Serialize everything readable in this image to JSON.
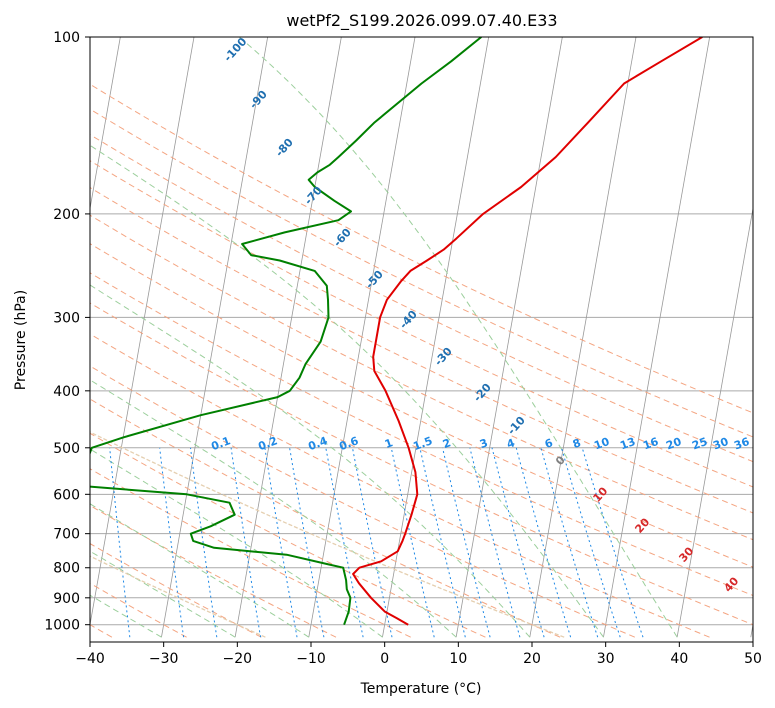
{
  "chart_data": {
    "type": "line",
    "subtype": "skew-T log-P diagram",
    "title": "wetPf2_S199.2026.099.07.40.E33",
    "xlabel": "Temperature (°C)",
    "ylabel": "Pressure (hPa)",
    "xlim": [
      -40,
      50
    ],
    "ylim": [
      1050,
      100
    ],
    "y_scale": "log",
    "grid": true,
    "x_ticks": [
      -40,
      -30,
      -20,
      -10,
      0,
      10,
      20,
      30,
      40,
      50
    ],
    "y_ticks": [
      100,
      200,
      300,
      400,
      500,
      600,
      700,
      800,
      900,
      1000
    ],
    "series": [
      {
        "color": "#e00000",
        "role": "temperature",
        "points": [
          [
            1000,
            3.2
          ],
          [
            975,
            1.5
          ],
          [
            950,
            -0.3
          ],
          [
            900,
            -2.5
          ],
          [
            850,
            -4.5
          ],
          [
            820,
            -5.5
          ],
          [
            800,
            -4.8
          ],
          [
            780,
            -2.0
          ],
          [
            750,
            0.0
          ],
          [
            720,
            0.4
          ],
          [
            700,
            0.6
          ],
          [
            650,
            1.0
          ],
          [
            600,
            1.3
          ],
          [
            550,
            0.5
          ],
          [
            500,
            -1.0
          ],
          [
            450,
            -3.0
          ],
          [
            400,
            -5.5
          ],
          [
            370,
            -7.5
          ],
          [
            350,
            -8.0
          ],
          [
            320,
            -8.0
          ],
          [
            300,
            -8.0
          ],
          [
            280,
            -7.5
          ],
          [
            260,
            -6.0
          ],
          [
            250,
            -5.0
          ],
          [
            240,
            -3.0
          ],
          [
            230,
            -1.0
          ],
          [
            220,
            0.5
          ],
          [
            200,
            3.5
          ],
          [
            180,
            8.0
          ],
          [
            160,
            12.0
          ],
          [
            140,
            15.5
          ],
          [
            120,
            19.5
          ],
          [
            110,
            24.0
          ],
          [
            100,
            29.0
          ]
        ]
      },
      {
        "color": "#008000",
        "role": "dewpoint",
        "points": [
          [
            1000,
            -5.5
          ],
          [
            950,
            -5.2
          ],
          [
            900,
            -5.3
          ],
          [
            870,
            -6.0
          ],
          [
            840,
            -6.3
          ],
          [
            800,
            -7.0
          ],
          [
            790,
            -9.0
          ],
          [
            760,
            -15.0
          ],
          [
            740,
            -25.0
          ],
          [
            720,
            -28.0
          ],
          [
            700,
            -28.5
          ],
          [
            680,
            -26.0
          ],
          [
            650,
            -23.0
          ],
          [
            620,
            -24.0
          ],
          [
            600,
            -30.0
          ],
          [
            580,
            -45.0
          ],
          [
            500,
            -44.0
          ],
          [
            480,
            -40.0
          ],
          [
            440,
            -30.0
          ],
          [
            410,
            -20.0
          ],
          [
            400,
            -18.5
          ],
          [
            380,
            -17.5
          ],
          [
            360,
            -17.0
          ],
          [
            330,
            -15.5
          ],
          [
            300,
            -15.0
          ],
          [
            280,
            -15.5
          ],
          [
            265,
            -16.0
          ],
          [
            250,
            -18.0
          ],
          [
            240,
            -23.0
          ],
          [
            235,
            -27.0
          ],
          [
            225,
            -28.5
          ],
          [
            215,
            -23.0
          ],
          [
            205,
            -16.0
          ],
          [
            198,
            -14.5
          ],
          [
            190,
            -17.0
          ],
          [
            180,
            -20.0
          ],
          [
            175,
            -21.0
          ],
          [
            170,
            -20.0
          ],
          [
            165,
            -18.5
          ],
          [
            160,
            -17.5
          ],
          [
            150,
            -15.5
          ],
          [
            140,
            -13.5
          ],
          [
            120,
            -8.0
          ],
          [
            110,
            -4.5
          ],
          [
            100,
            -1.0
          ]
        ]
      }
    ],
    "dry_adiabats_c": [
      -100,
      -90,
      -80,
      -70,
      -60,
      -50,
      -40,
      -30,
      -20,
      -10,
      0,
      10,
      20,
      30,
      40,
      50,
      60,
      70,
      80,
      90,
      100,
      110,
      120,
      130
    ],
    "moist_adiabats_c": [
      -100,
      -90,
      -80,
      -70,
      -60,
      -50,
      -40,
      -30,
      -20,
      -10,
      0,
      10,
      20,
      30,
      40
    ],
    "mixing_ratios_gkg": [
      0.1,
      0.2,
      0.4,
      0.6,
      1,
      1.5,
      2,
      3,
      4,
      6,
      8,
      10,
      13,
      16,
      20,
      25,
      30,
      36
    ],
    "isotherms_c": [
      -120,
      -110,
      -100,
      -90,
      -80,
      -70,
      -60,
      -50,
      -40,
      -30,
      -20,
      -10,
      0,
      10,
      20,
      30,
      40,
      50
    ],
    "moist_adiabat_label_texts": [
      "-100",
      "-90",
      "-80",
      "-70",
      "-60",
      "-50",
      "-40",
      "-30",
      "-20",
      "-10"
    ],
    "mixing_ratio_label_texts": [
      "0.1",
      "0.2",
      "0.4",
      "0.6",
      "1",
      "1.5",
      "2",
      "3",
      "4",
      "6",
      "8",
      "10",
      "13",
      "16",
      "20",
      "25",
      "30",
      "36"
    ],
    "theta_e_label_texts": [
      "0",
      "10",
      "20",
      "30",
      "40"
    ]
  },
  "colors": {
    "temperature": "#e00000",
    "dewpoint": "#008000",
    "grid": "#aaaaaa",
    "isotherm": "#999999",
    "dry_adiabat": "#f4a582",
    "moist_adiabat": "#9ccf9c",
    "mixing_ratio": "#1e88e5",
    "moist_label": "#1f6fb0",
    "theta_e_label": "#d62728",
    "theta_e_zero": "#808080"
  }
}
